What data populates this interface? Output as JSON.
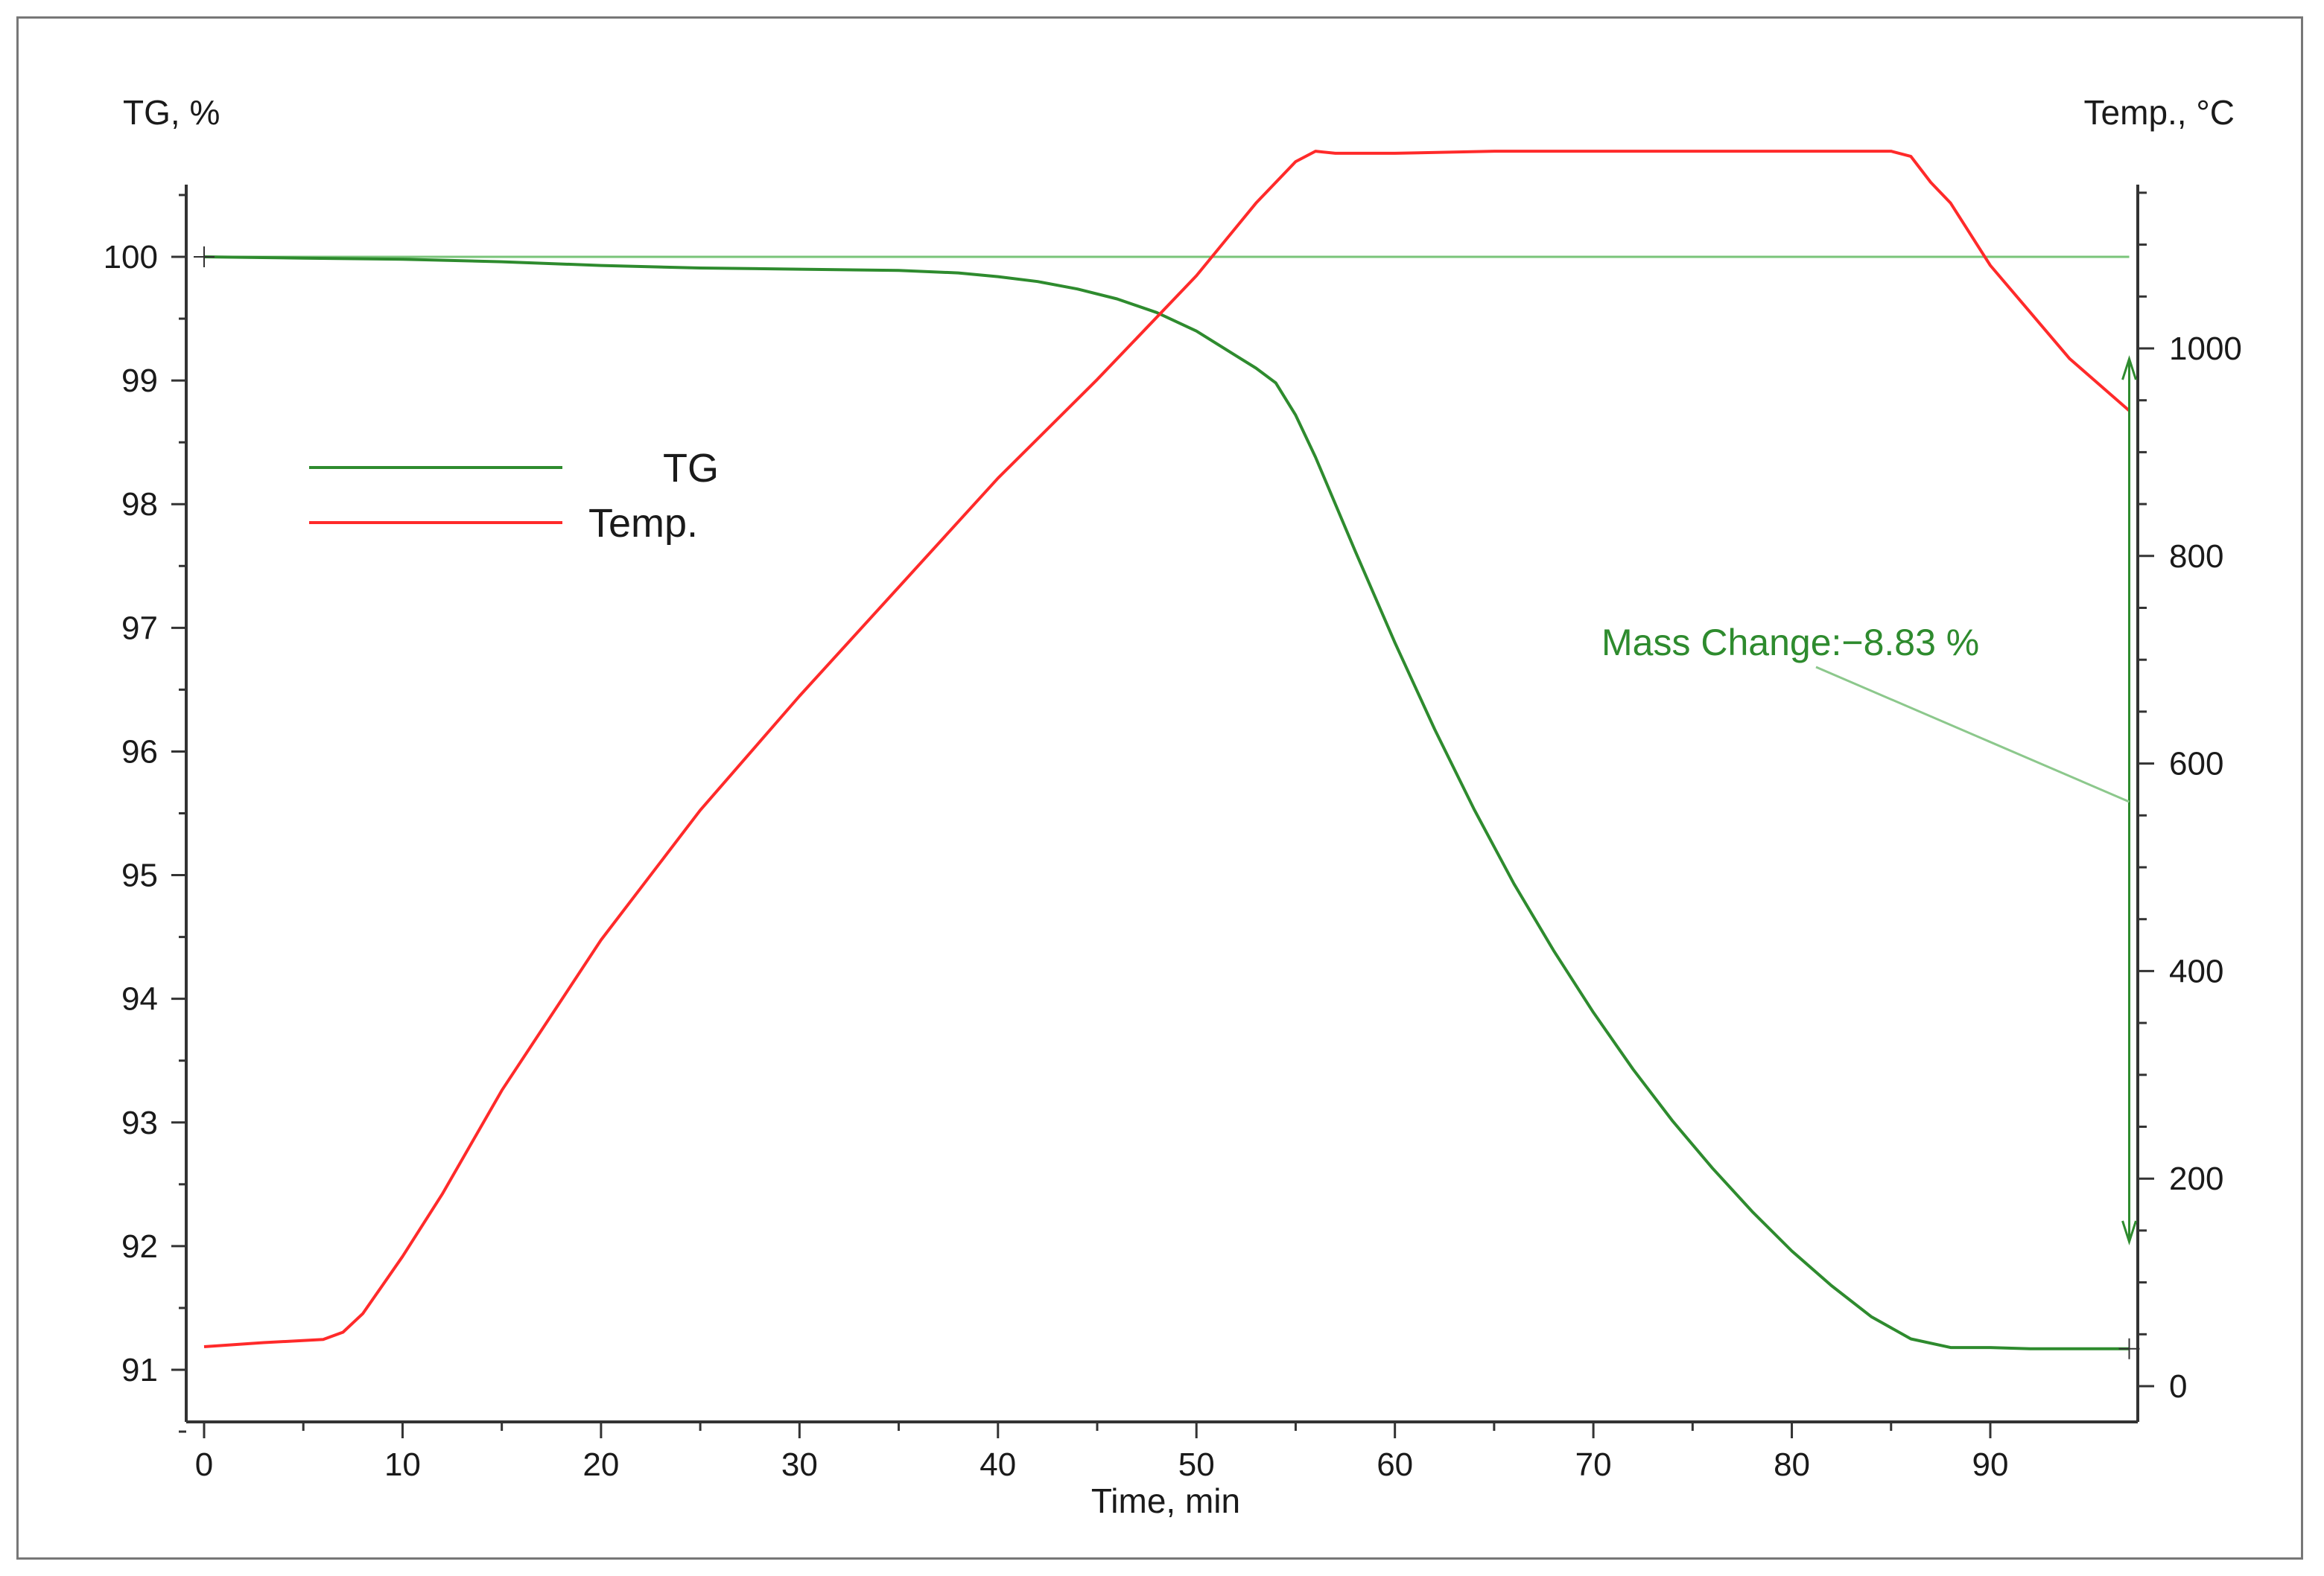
{
  "chart_data": {
    "type": "line",
    "title": "",
    "xlabel": "Time, min",
    "ylabel": "TG, %",
    "y2label": "Temp., °C",
    "xlim": [
      -1,
      97.5
    ],
    "ylim": [
      90.6,
      100.55
    ],
    "y2lim": [
      -20,
      1150
    ],
    "x_ticks": [
      0,
      10,
      20,
      30,
      40,
      50,
      60,
      70,
      80,
      90
    ],
    "y_ticks": [
      91,
      92,
      93,
      94,
      95,
      96,
      97,
      98,
      99,
      100
    ],
    "y2_ticks": [
      0,
      200,
      400,
      600,
      800,
      1000
    ],
    "grid": false,
    "legend": {
      "position": "upper-left",
      "entries": [
        "TG",
        "Temp."
      ]
    },
    "colors": {
      "TG": "#2e8b2e",
      "Temp.": "#ff2a2a",
      "baseline": "#7ac47a",
      "annotation": "#2e8b2e"
    },
    "series": [
      {
        "name": "TG",
        "axis": "left",
        "x": [
          0,
          5,
          10,
          15,
          20,
          25,
          30,
          35,
          38,
          40,
          42,
          44,
          46,
          48,
          50,
          52,
          53,
          54,
          55,
          56,
          58,
          60,
          62,
          64,
          66,
          68,
          70,
          72,
          74,
          76,
          78,
          80,
          82,
          84,
          86,
          88,
          90,
          92,
          94,
          97
        ],
        "values": [
          100.0,
          99.99,
          99.98,
          99.96,
          99.93,
          99.91,
          99.9,
          99.89,
          99.87,
          99.84,
          99.8,
          99.74,
          99.66,
          99.55,
          99.4,
          99.2,
          99.1,
          98.98,
          98.72,
          98.38,
          97.62,
          96.88,
          96.18,
          95.53,
          94.93,
          94.39,
          93.89,
          93.43,
          93.01,
          92.63,
          92.28,
          91.96,
          91.68,
          91.43,
          91.25,
          91.18,
          91.18,
          91.17,
          91.17,
          91.17
        ]
      },
      {
        "name": "Temp.",
        "axis": "right",
        "x": [
          0,
          3,
          6,
          7,
          8,
          10,
          12,
          15,
          20,
          25,
          30,
          35,
          40,
          45,
          50,
          53,
          55,
          56,
          57,
          60,
          65,
          70,
          80,
          85,
          86,
          87,
          88,
          90,
          92,
          94,
          97
        ],
        "values": [
          38,
          42,
          45,
          52,
          70,
          125,
          185,
          285,
          430,
          555,
          665,
          770,
          875,
          970,
          1070,
          1140,
          1180,
          1190,
          1188,
          1188,
          1190,
          1190,
          1190,
          1190,
          1185,
          1160,
          1140,
          1080,
          1035,
          990,
          940
        ]
      }
    ],
    "baseline": {
      "name": "TG reference line",
      "axis": "left",
      "y": 100.0,
      "x_range": [
        0,
        97
      ]
    },
    "annotations": [
      {
        "text": "Mass Change:",
        "value": "−8.83 %",
        "arrow_x": 97,
        "arrow_y": [
          91.17,
          100.0
        ],
        "label_x": 71,
        "label_y": 97.0
      }
    ]
  }
}
